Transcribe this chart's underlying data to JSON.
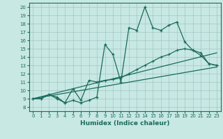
{
  "xlabel": "Humidex (Indice chaleur)",
  "bg_color": "#c8e8e4",
  "line_color": "#1a6b5a",
  "grid_color": "#a0c8c4",
  "xlim": [
    -0.5,
    23.5
  ],
  "ylim": [
    7.5,
    20.5
  ],
  "xticks": [
    0,
    1,
    2,
    3,
    4,
    5,
    6,
    7,
    8,
    9,
    10,
    11,
    12,
    13,
    14,
    15,
    16,
    17,
    18,
    19,
    20,
    21,
    22,
    23
  ],
  "yticks": [
    8,
    9,
    10,
    11,
    12,
    13,
    14,
    15,
    16,
    17,
    18,
    19,
    20
  ],
  "series1_x": [
    0,
    1,
    2,
    3,
    4,
    5,
    6,
    7,
    8,
    9,
    10,
    11,
    12,
    13,
    14,
    15,
    16,
    17,
    18,
    19,
    20,
    21,
    22,
    23
  ],
  "series1_y": [
    9.0,
    9.0,
    9.5,
    9.0,
    8.5,
    8.8,
    8.5,
    8.8,
    9.2,
    15.5,
    14.3,
    11.0,
    17.5,
    17.2,
    20.0,
    17.5,
    17.2,
    17.8,
    18.2,
    15.8,
    14.8,
    14.2,
    13.2,
    13.0
  ],
  "series2_x": [
    0,
    1,
    2,
    3,
    4,
    5,
    6,
    7,
    8,
    9,
    10,
    11,
    12,
    13,
    14,
    15,
    16,
    17,
    18,
    19,
    20,
    21,
    22,
    23
  ],
  "series2_y": [
    9.0,
    9.0,
    9.5,
    9.2,
    8.5,
    10.2,
    8.8,
    11.2,
    11.0,
    11.2,
    11.3,
    11.5,
    12.0,
    12.5,
    13.0,
    13.5,
    14.0,
    14.3,
    14.8,
    15.0,
    14.8,
    14.5,
    13.2,
    13.0
  ],
  "line3": [
    [
      0,
      9.0
    ],
    [
      23,
      14.5
    ]
  ],
  "line4": [
    [
      0,
      9.0
    ],
    [
      23,
      12.8
    ]
  ]
}
